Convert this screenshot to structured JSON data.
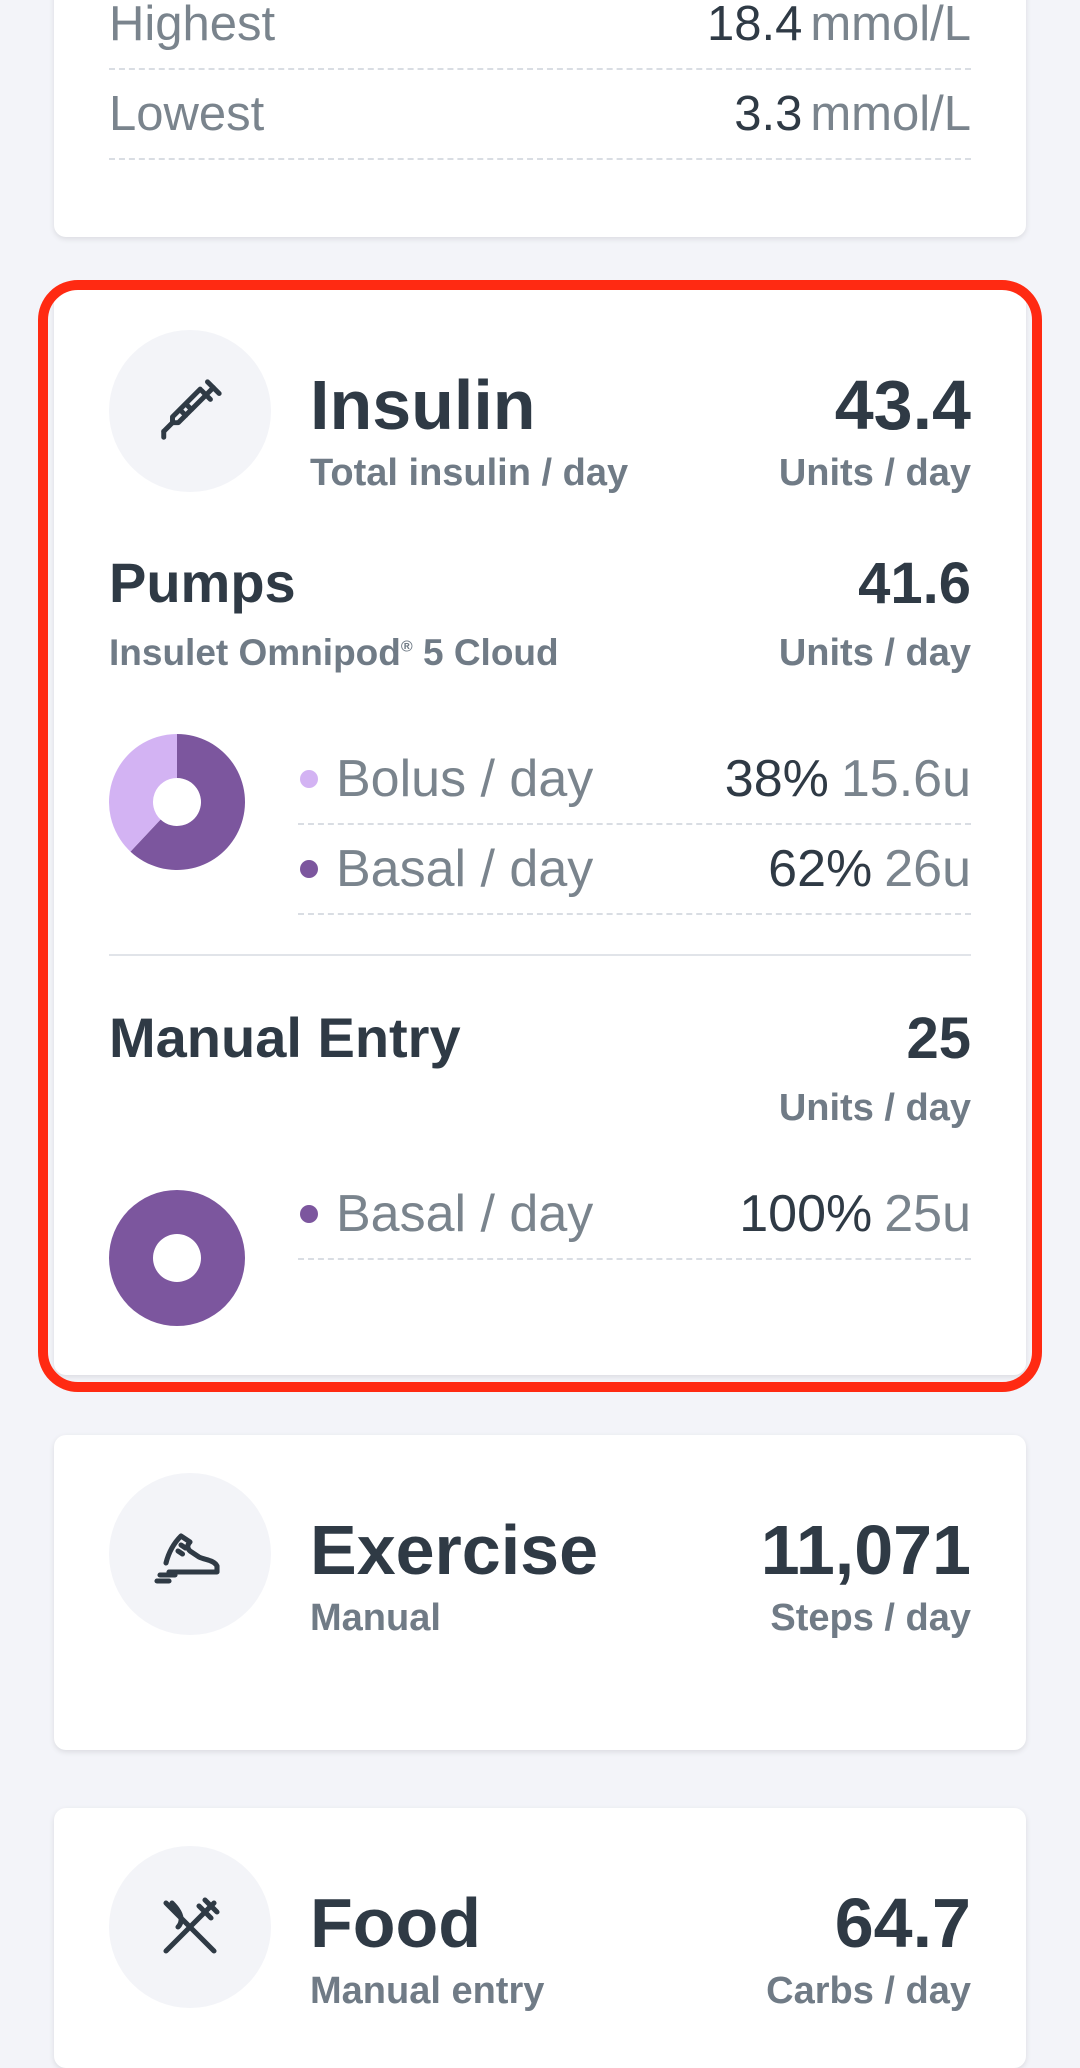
{
  "glucose_stats": {
    "highest_label": "Highest",
    "highest_value": "18.4",
    "highest_unit": "mmol/L",
    "lowest_label": "Lowest",
    "lowest_value": "3.3",
    "lowest_unit": "mmol/L"
  },
  "insulin": {
    "icon": "syringe-icon",
    "title": "Insulin",
    "subtitle": "Total insulin / day",
    "total": "43.4",
    "unit": "Units / day",
    "pumps": {
      "title": "Pumps",
      "device": "Insulet Omnipod",
      "device_mark": "®",
      "device_suffix": "5 Cloud",
      "total": "41.6",
      "unit": "Units / day",
      "items": [
        {
          "name": "Bolus / day",
          "percent": "38%",
          "amount": "15.6u",
          "fraction": 0.38,
          "color": "#d3b3f3"
        },
        {
          "name": "Basal / day",
          "percent": "62%",
          "amount": "26u",
          "fraction": 0.62,
          "color": "#7c569e"
        }
      ]
    },
    "manual": {
      "title": "Manual Entry",
      "total": "25",
      "unit": "Units / day",
      "items": [
        {
          "name": "Basal / day",
          "percent": "100%",
          "amount": "25u",
          "fraction": 1.0,
          "color": "#7c569e"
        }
      ]
    }
  },
  "exercise": {
    "icon": "sneaker-icon",
    "title": "Exercise",
    "subtitle": "Manual",
    "total": "11,071",
    "unit": "Steps / day"
  },
  "food": {
    "icon": "fork-knife-icon",
    "title": "Food",
    "subtitle": "Manual entry",
    "total": "64.7",
    "unit": "Carbs / day"
  },
  "colors": {
    "highlight": "#ff2a12",
    "bolus": "#d3b3f3",
    "basal": "#7c569e"
  }
}
